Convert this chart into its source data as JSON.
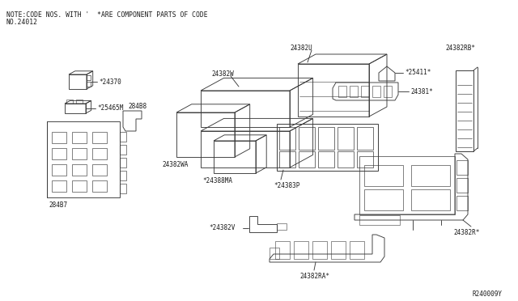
{
  "bg_color": "#ffffff",
  "line_color": "#3a3a3a",
  "text_color": "#1a1a1a",
  "fig_width": 6.4,
  "fig_height": 3.72,
  "dpi": 100,
  "note_line1": "NOTE:CODE NOS. WITH '  *ARE COMPONENT PARTS OF CODE",
  "note_line2": "NO.24012",
  "watermark": "R240009Y"
}
